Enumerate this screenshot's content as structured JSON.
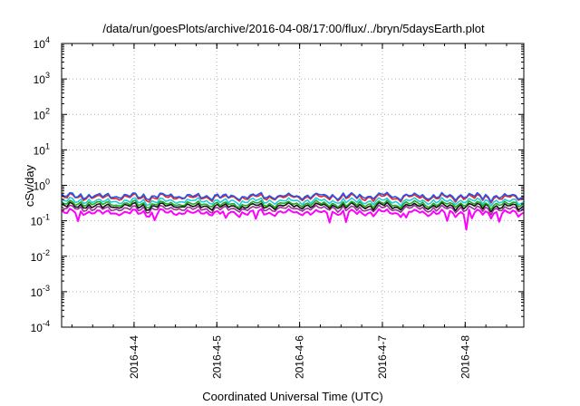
{
  "chart_data": {
    "type": "line",
    "title": "/data/run/goesPlots/archive/2016-04-08/17:00/flux/../bryn/5daysEarth.plot",
    "xlabel": "Coordinated Universal Time (UTC)",
    "ylabel": "cSv/day",
    "y_scale": "log",
    "ylim": [
      0.0001,
      10000
    ],
    "y_ticks": [
      {
        "base": "10",
        "exp": "-4",
        "value": 0.0001
      },
      {
        "base": "10",
        "exp": "-3",
        "value": 0.001
      },
      {
        "base": "10",
        "exp": "-2",
        "value": 0.01
      },
      {
        "base": "10",
        "exp": "-1",
        "value": 0.1
      },
      {
        "base": "10",
        "exp": "0",
        "value": 1
      },
      {
        "base": "10",
        "exp": "1",
        "value": 10
      },
      {
        "base": "10",
        "exp": "2",
        "value": 100
      },
      {
        "base": "10",
        "exp": "3",
        "value": 1000
      },
      {
        "base": "10",
        "exp": "4",
        "value": 10000
      }
    ],
    "xlim": [
      "2016-04-03 03:00",
      "2016-04-08 17:00"
    ],
    "x_ticks": [
      {
        "label": "2016-4-4",
        "date": "2016-04-04 00:00"
      },
      {
        "label": "2016-4-5",
        "date": "2016-04-05 00:00"
      },
      {
        "label": "2016-4-6",
        "date": "2016-04-06 00:00"
      },
      {
        "label": "2016-4-7",
        "date": "2016-04-07 00:00"
      },
      {
        "label": "2016-4-8",
        "date": "2016-04-08 00:00"
      }
    ],
    "grid": true,
    "legend": "none",
    "series": [
      {
        "color": "#2255ee",
        "typical_value": 0.5
      },
      {
        "color": "#ee2222",
        "typical_value": 0.46
      },
      {
        "color": "#22ccdd",
        "typical_value": 0.36
      },
      {
        "color": "#22aa22",
        "typical_value": 0.3
      },
      {
        "color": "#111111",
        "typical_value": 0.26
      },
      {
        "color": "#993399",
        "typical_value": 0.22
      },
      {
        "color": "#ff00ff",
        "typical_value": 0.17
      }
    ]
  }
}
